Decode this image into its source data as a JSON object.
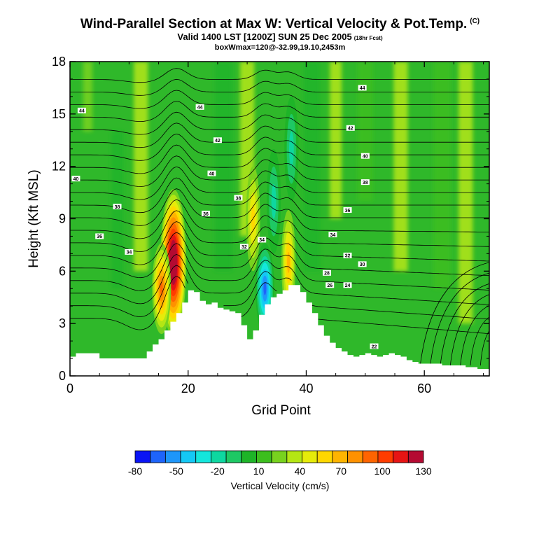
{
  "header": {
    "title": "Wind-Parallel Section at Max W: Vertical Velocity & Pot.Temp.",
    "title_mark": "(C)",
    "subtitle": "Valid 1400 LST [1200Z] SUN 25 Dec 2005",
    "subtitle_note": "(18hr Fcst)",
    "subtitle2": "boxWmax=120@-32.99,19.10,2453m"
  },
  "chart_data": {
    "type": "heatmap",
    "xlabel": "Grid Point",
    "ylabel": "Height (Kft MSL)",
    "xlim": [
      0,
      71
    ],
    "ylim": [
      0,
      18
    ],
    "xticks": [
      0,
      20,
      40,
      60
    ],
    "yticks": [
      0,
      3,
      6,
      9,
      12,
      15,
      18
    ],
    "terrain": {
      "x": [
        0,
        1,
        3,
        5,
        7,
        8,
        10,
        12,
        13,
        14,
        15,
        16,
        17,
        18,
        19,
        20,
        21,
        22,
        23,
        24,
        25,
        26,
        27,
        28,
        29,
        30,
        31,
        32,
        33,
        34,
        35,
        36,
        37,
        38,
        39,
        40,
        41,
        42,
        43,
        44,
        45,
        46,
        47,
        48,
        49,
        50,
        51,
        52,
        53,
        54,
        55,
        56,
        57,
        58,
        59,
        60,
        61,
        62,
        63,
        64,
        65,
        66,
        67,
        68,
        69,
        70,
        71
      ],
      "height_kft": [
        1.1,
        1.3,
        1.3,
        1.0,
        1.0,
        1.0,
        1.0,
        1.0,
        1.4,
        1.8,
        2.1,
        2.6,
        3.1,
        3.6,
        4.2,
        4.9,
        4.8,
        4.3,
        4.1,
        4.2,
        3.9,
        3.8,
        3.7,
        3.6,
        2.9,
        2.1,
        2.6,
        3.5,
        4.1,
        4.5,
        4.7,
        4.9,
        5.2,
        5.2,
        4.8,
        4.2,
        3.6,
        2.9,
        2.3,
        1.9,
        1.6,
        1.4,
        1.2,
        1.1,
        1.2,
        1.3,
        1.2,
        1.1,
        1.2,
        1.3,
        1.2,
        1.1,
        0.9,
        0.8,
        0.7,
        0.7,
        0.7,
        0.7,
        0.6,
        0.6,
        0.6,
        0.6,
        0.5,
        0.5,
        0.4,
        0.4,
        0.4
      ]
    },
    "vertical_velocity_features": [
      {
        "x": 17.5,
        "y_kft": 6.5,
        "value_cm_s": 120
      },
      {
        "x": 15.5,
        "y_kft": 5.0,
        "value_cm_s": 60
      },
      {
        "x": 37.0,
        "y_kft": 6.5,
        "value_cm_s": 40
      },
      {
        "x": 33.0,
        "y_kft": 5.0,
        "value_cm_s": -60
      },
      {
        "x": 34.5,
        "y_kft": 10.0,
        "value_cm_s": -20
      },
      {
        "x": 31.0,
        "y_kft": 9.0,
        "value_cm_s": 30
      },
      {
        "x": 37.5,
        "y_kft": 13.0,
        "value_cm_s": -20
      }
    ],
    "contour_labels": [
      {
        "text": "44",
        "x": 2,
        "y": 15.2
      },
      {
        "text": "44",
        "x": 22,
        "y": 15.4
      },
      {
        "text": "44",
        "x": 49.5,
        "y": 16.5
      },
      {
        "text": "42",
        "x": 25,
        "y": 13.5
      },
      {
        "text": "42",
        "x": 47.5,
        "y": 14.2
      },
      {
        "text": "40",
        "x": 24,
        "y": 11.6
      },
      {
        "text": "40",
        "x": 50,
        "y": 12.6
      },
      {
        "text": "40",
        "x": 1,
        "y": 11.3
      },
      {
        "text": "38",
        "x": 28.5,
        "y": 10.2
      },
      {
        "text": "38",
        "x": 50,
        "y": 11.1
      },
      {
        "text": "38",
        "x": 8,
        "y": 9.7
      },
      {
        "text": "36",
        "x": 23,
        "y": 9.3
      },
      {
        "text": "36",
        "x": 47,
        "y": 9.5
      },
      {
        "text": "36",
        "x": 5,
        "y": 8.0
      },
      {
        "text": "34",
        "x": 44.5,
        "y": 8.1
      },
      {
        "text": "34",
        "x": 10,
        "y": 7.1
      },
      {
        "text": "34",
        "x": 32.5,
        "y": 7.8
      },
      {
        "text": "32",
        "x": 29.5,
        "y": 7.4
      },
      {
        "text": "32",
        "x": 47,
        "y": 6.9
      },
      {
        "text": "30",
        "x": 49.5,
        "y": 6.4
      },
      {
        "text": "28",
        "x": 43.5,
        "y": 5.9
      },
      {
        "text": "26",
        "x": 44,
        "y": 5.2
      },
      {
        "text": "24",
        "x": 47,
        "y": 5.2
      },
      {
        "text": "22",
        "x": 51.5,
        "y": 1.7
      }
    ],
    "colorbar": {
      "label": "Vertical Velocity (cm/s)",
      "tick_labels": [
        "-80",
        "-50",
        "-20",
        "10",
        "40",
        "70",
        "100",
        "130"
      ],
      "colors": [
        "#0a14f5",
        "#1e64fa",
        "#1e96fa",
        "#14c8f5",
        "#14e6dc",
        "#0ed7a0",
        "#1ec864",
        "#1eb428",
        "#3cbe1e",
        "#78d21e",
        "#b4e614",
        "#e6eb0a",
        "#ffd700",
        "#ffb400",
        "#ff9100",
        "#ff6400",
        "#ff3c00",
        "#e61414",
        "#b40a32"
      ]
    }
  }
}
